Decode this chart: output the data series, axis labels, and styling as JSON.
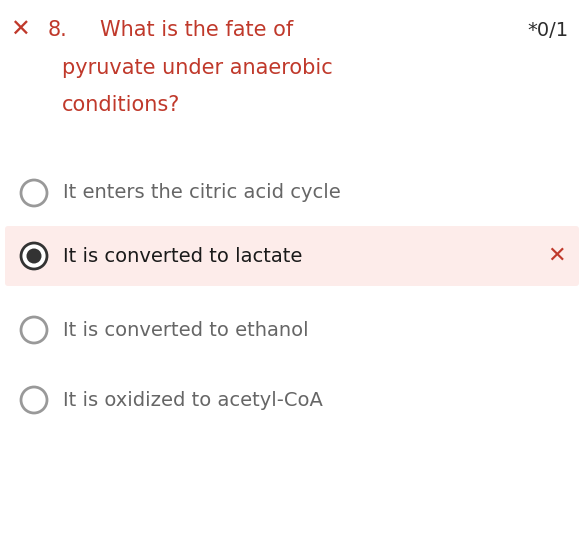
{
  "background_color": "#ffffff",
  "question_number": "8.",
  "question_text_line1": "What is the fate of",
  "question_text_line2": "pyruvate under anaerobic",
  "question_text_line3": "conditions?",
  "score_text": "*0/1",
  "question_color": "#c0392b",
  "score_color": "#2d2d2d",
  "x_mark_color": "#c0392b",
  "options": [
    {
      "text": "It enters the citric acid cycle",
      "selected": false,
      "highlighted": false,
      "wrong": false
    },
    {
      "text": "It is converted to lactate",
      "selected": true,
      "highlighted": true,
      "wrong": true
    },
    {
      "text": "It is converted to ethanol",
      "selected": false,
      "highlighted": false,
      "wrong": false
    },
    {
      "text": "It is oxidized to acetyl-CoA",
      "selected": false,
      "highlighted": false,
      "wrong": false
    }
  ],
  "option_text_color_normal": "#666666",
  "option_text_color_selected": "#1a1a1a",
  "option_bg_highlighted": "#fdecea",
  "radio_border_color": "#999999",
  "radio_fill_color_selected": "#333333",
  "fig_width": 5.84,
  "fig_height": 5.33,
  "dpi": 100
}
